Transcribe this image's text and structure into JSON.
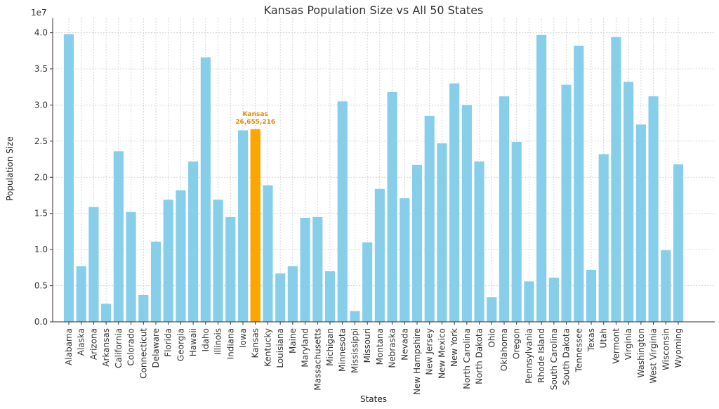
{
  "chart_data": {
    "type": "bar",
    "title": "Kansas Population Size vs All 50 States",
    "xlabel": "States",
    "ylabel": "Population Size",
    "y_offset_label": "1e7",
    "ylim": [
      0,
      4.2
    ],
    "yticks": [
      "0.0",
      "0.5",
      "1.0",
      "1.5",
      "2.0",
      "2.5",
      "3.0",
      "3.5",
      "4.0"
    ],
    "grid": true,
    "bar_color": "#87CEEB",
    "highlight_color": "#FFA500",
    "highlight_category": "Kansas",
    "annotation": {
      "category": "Kansas",
      "lines": [
        "Kansas",
        "26,655,216"
      ],
      "color": "#E08A00"
    },
    "categories": [
      "Alabama",
      "Alaska",
      "Arizona",
      "Arkansas",
      "California",
      "Colorado",
      "Connecticut",
      "Delaware",
      "Florida",
      "Georgia",
      "Hawaii",
      "Idaho",
      "Illinois",
      "Indiana",
      "Iowa",
      "Kansas",
      "Kentucky",
      "Louisiana",
      "Maine",
      "Maryland",
      "Massachusetts",
      "Michigan",
      "Minnesota",
      "Mississippi",
      "Missouri",
      "Montana",
      "Nebraska",
      "Nevada",
      "New Hampshire",
      "New Jersey",
      "New Mexico",
      "New York",
      "North Carolina",
      "North Dakota",
      "Ohio",
      "Oklahoma",
      "Oregon",
      "Pennsylvania",
      "Rhode Island",
      "South Carolina",
      "South Dakota",
      "Tennessee",
      "Texas",
      "Utah",
      "Vermont",
      "Virginia",
      "Washington",
      "West Virginia",
      "Wisconsin",
      "Wyoming"
    ],
    "values": [
      3.98,
      0.77,
      1.59,
      0.25,
      2.36,
      1.52,
      0.37,
      1.11,
      1.69,
      1.82,
      2.22,
      3.66,
      1.69,
      1.45,
      2.65,
      2.6655216,
      1.89,
      0.67,
      0.77,
      1.44,
      1.45,
      0.7,
      3.05,
      0.15,
      1.1,
      1.84,
      3.18,
      1.71,
      2.17,
      2.85,
      2.47,
      3.3,
      3.0,
      2.22,
      0.34,
      3.12,
      2.49,
      0.56,
      3.97,
      0.61,
      3.28,
      3.82,
      0.72,
      2.32,
      3.94,
      3.32,
      2.73,
      3.12,
      0.99,
      2.18
    ]
  }
}
